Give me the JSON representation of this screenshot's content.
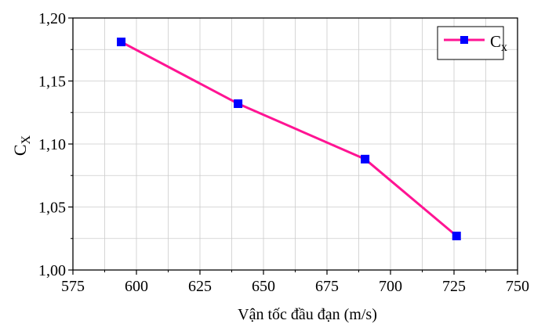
{
  "colors": {
    "line": "#ff1493",
    "marker": "#0000ff",
    "grid": "#cccccc",
    "axis": "#000000",
    "background": "#ffffff"
  },
  "chart_data": {
    "type": "line",
    "title": "",
    "xlabel": "Vận tốc đầu đạn (m/s)",
    "ylabel_main": "C",
    "ylabel_sub": "X",
    "xlim": [
      575,
      750
    ],
    "ylim": [
      1.0,
      1.2
    ],
    "x_ticks": [
      575,
      600,
      625,
      650,
      675,
      700,
      725,
      750
    ],
    "x_tick_labels": [
      "575",
      "600",
      "625",
      "650",
      "675",
      "700",
      "725",
      "750"
    ],
    "y_ticks": [
      1.0,
      1.05,
      1.1,
      1.15,
      1.2
    ],
    "y_tick_labels": [
      "1,00",
      "1,05",
      "1,10",
      "1,15",
      "1,20"
    ],
    "x_minor_step": 12.5,
    "y_minor_step": 0.025,
    "grid": true,
    "legend_position": "top-right",
    "series": [
      {
        "name_main": "C",
        "name_sub": "x",
        "x": [
          594,
          640,
          690,
          726
        ],
        "y": [
          1.181,
          1.132,
          1.088,
          1.027
        ],
        "marker": "square"
      }
    ]
  }
}
